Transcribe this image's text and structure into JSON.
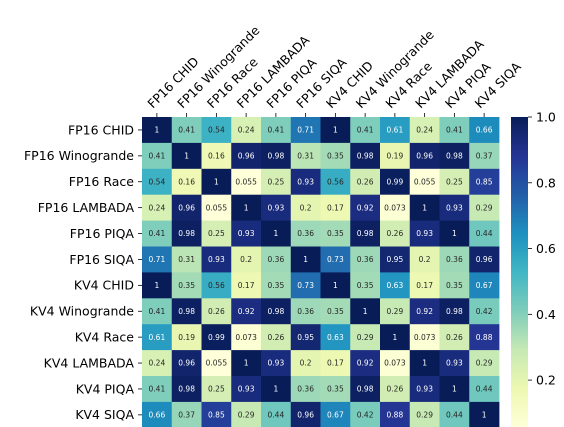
{
  "chart_data": {
    "type": "heatmap",
    "title": "",
    "xlabel": "",
    "ylabel": "",
    "x_labels": [
      "FP16 CHID",
      "FP16 Winogrande",
      "FP16 Race",
      "FP16 LAMBADA",
      "FP16 PIQA",
      "FP16 SIQA",
      "KV4 CHID",
      "KV4 Winogrande",
      "KV4 Race",
      "KV4 LAMBADA",
      "KV4 PIQA",
      "KV4 SIQA"
    ],
    "y_labels": [
      "FP16 CHID",
      "FP16 Winogrande",
      "FP16 Race",
      "FP16 LAMBADA",
      "FP16 PIQA",
      "FP16 SIQA",
      "KV4 CHID",
      "KV4 Winogrande",
      "KV4 Race",
      "KV4 LAMBADA",
      "KV4 PIQA",
      "KV4 SIQA"
    ],
    "values": [
      [
        1,
        0.41,
        0.54,
        0.24,
        0.41,
        0.71,
        1,
        0.41,
        0.61,
        0.24,
        0.41,
        0.66
      ],
      [
        0.41,
        1,
        0.16,
        0.96,
        0.98,
        0.31,
        0.35,
        0.98,
        0.19,
        0.96,
        0.98,
        0.37
      ],
      [
        0.54,
        0.16,
        1,
        0.055,
        0.25,
        0.93,
        0.56,
        0.26,
        0.99,
        0.055,
        0.25,
        0.85
      ],
      [
        0.24,
        0.96,
        0.055,
        1,
        0.93,
        0.2,
        0.17,
        0.92,
        0.073,
        1,
        0.93,
        0.29
      ],
      [
        0.41,
        0.98,
        0.25,
        0.93,
        1,
        0.36,
        0.35,
        0.98,
        0.26,
        0.93,
        1,
        0.44
      ],
      [
        0.71,
        0.31,
        0.93,
        0.2,
        0.36,
        1,
        0.73,
        0.36,
        0.95,
        0.2,
        0.36,
        0.96
      ],
      [
        1,
        0.35,
        0.56,
        0.17,
        0.35,
        0.73,
        1,
        0.35,
        0.63,
        0.17,
        0.35,
        0.67
      ],
      [
        0.41,
        0.98,
        0.26,
        0.92,
        0.98,
        0.36,
        0.35,
        1,
        0.29,
        0.92,
        0.98,
        0.42
      ],
      [
        0.61,
        0.19,
        0.99,
        0.073,
        0.26,
        0.95,
        0.63,
        0.29,
        1,
        0.073,
        0.26,
        0.88
      ],
      [
        0.24,
        0.96,
        0.055,
        1,
        0.93,
        0.2,
        0.17,
        0.92,
        0.073,
        1,
        0.93,
        0.29
      ],
      [
        0.41,
        0.98,
        0.25,
        0.93,
        1,
        0.36,
        0.35,
        0.98,
        0.26,
        0.93,
        1,
        0.44
      ],
      [
        0.66,
        0.37,
        0.85,
        0.29,
        0.44,
        0.96,
        0.67,
        0.42,
        0.88,
        0.29,
        0.44,
        1
      ]
    ],
    "colormap": "YlGnBu",
    "colormap_stops": [
      "#ffffd9",
      "#edf8b1",
      "#c7e9b4",
      "#7fcdbb",
      "#41b6c4",
      "#1d91c0",
      "#225ea8",
      "#253494",
      "#081d58"
    ],
    "value_range": [
      0.055,
      1.0
    ],
    "colorbar": {
      "ticks": [
        "0.2",
        "0.4",
        "0.6",
        "0.8",
        "1.0"
      ],
      "tick_values": [
        0.2,
        0.4,
        0.6,
        0.8,
        1.0
      ]
    },
    "annotations": true,
    "x_tick_rotation_deg": 45,
    "x_labels_position": "top",
    "colorbar_position": "right"
  }
}
